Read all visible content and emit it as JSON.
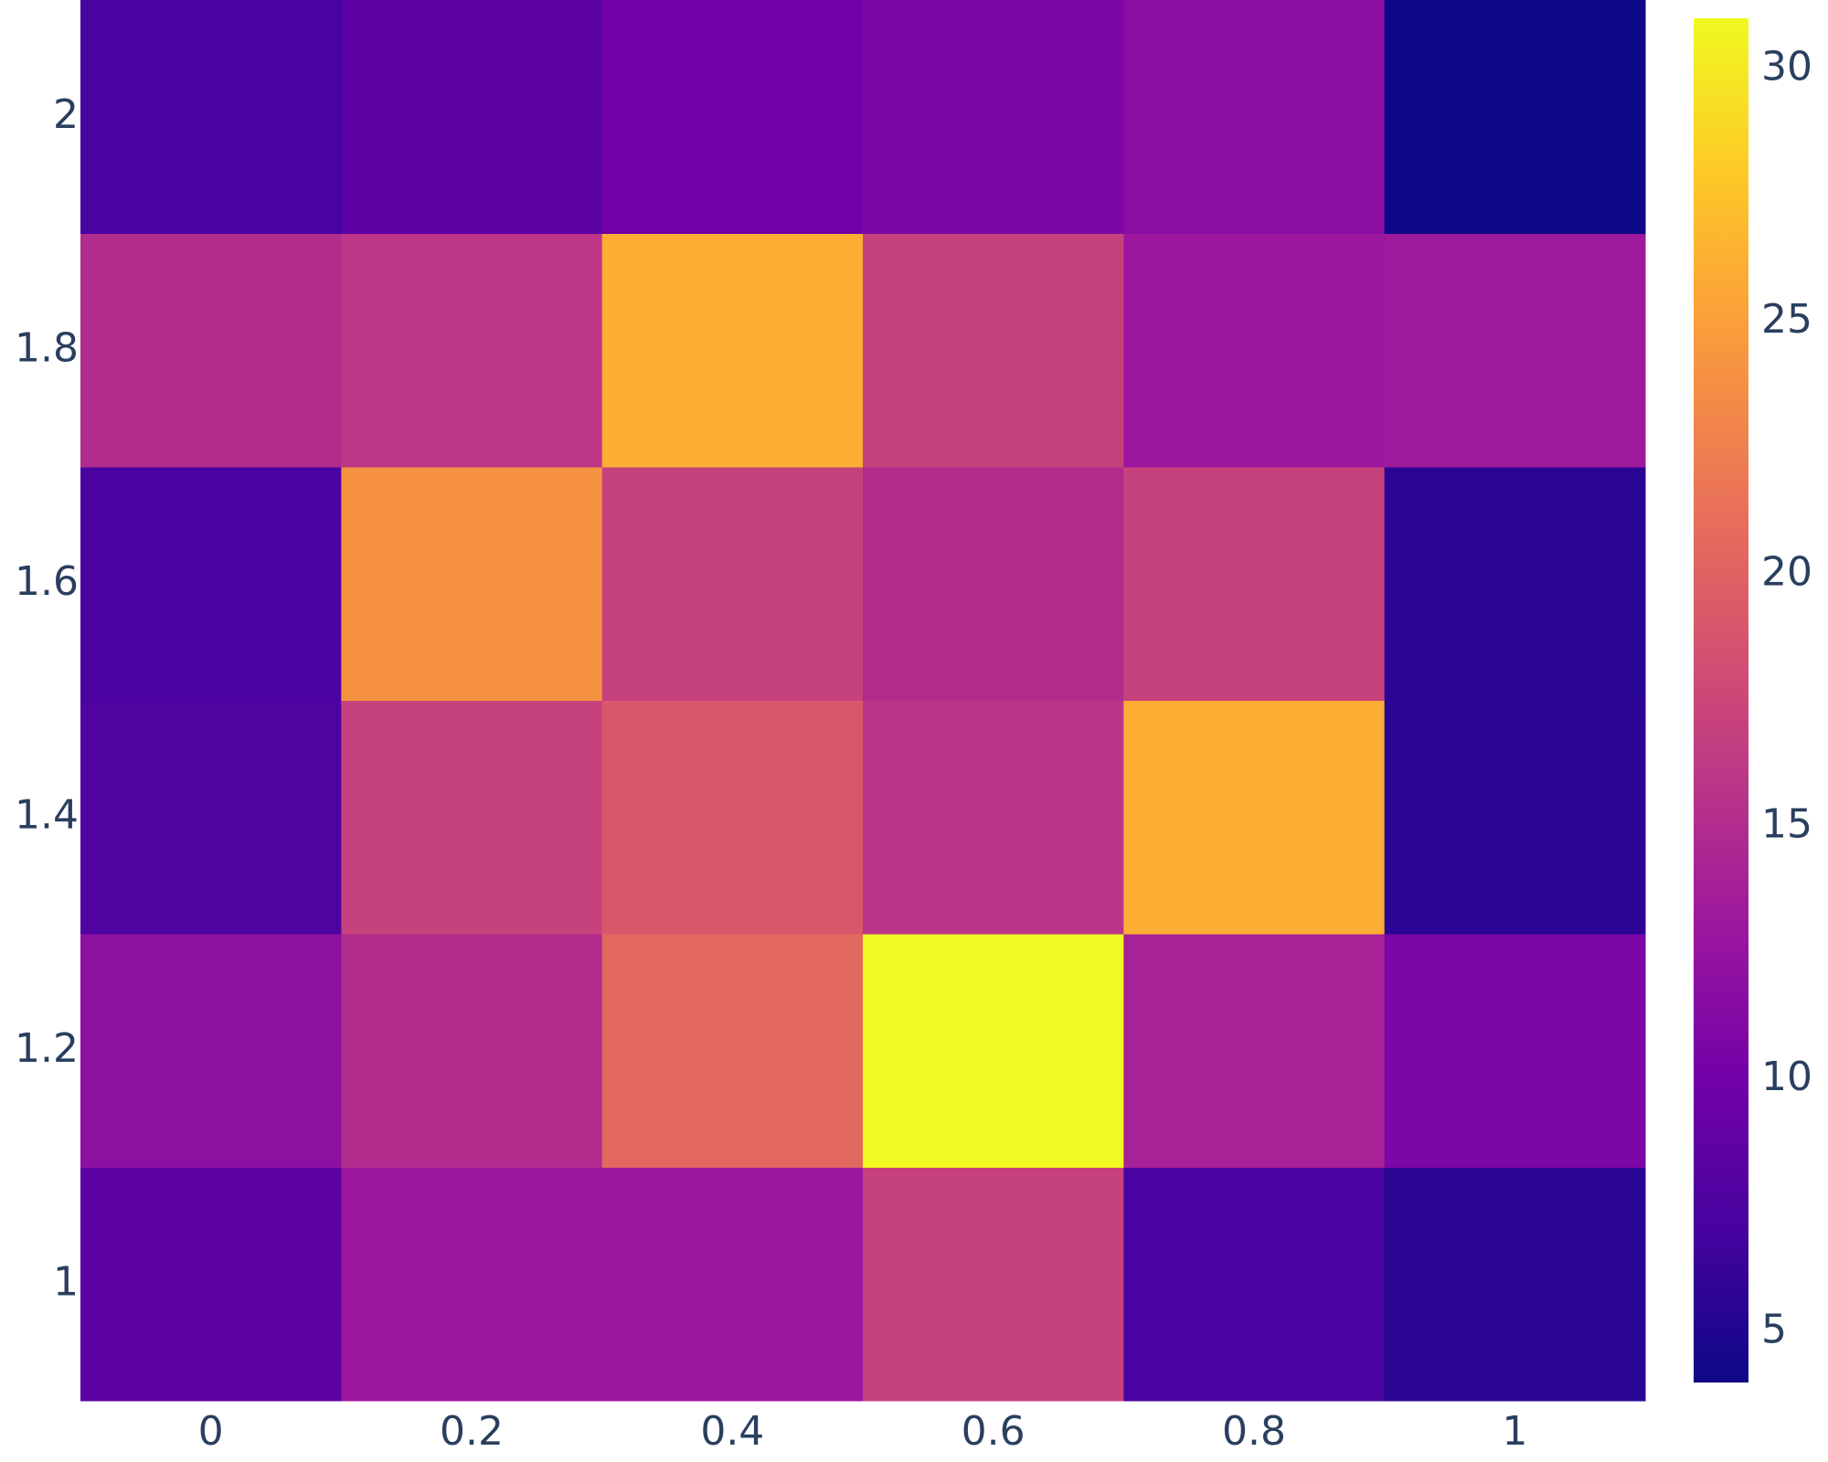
{
  "chart_data": {
    "type": "heatmap",
    "x": [
      0,
      0.2,
      0.4,
      0.6,
      0.8,
      1
    ],
    "y": [
      1,
      1.2,
      1.4,
      1.6,
      1.8,
      2
    ],
    "z": [
      [
        8.5,
        13,
        13,
        17,
        7.3,
        5.5
      ],
      [
        12,
        15,
        20.5,
        31,
        14,
        10.7
      ],
      [
        7.6,
        17,
        19,
        15.7,
        26,
        5.7
      ],
      [
        7.3,
        24,
        17,
        15,
        17,
        5.6
      ],
      [
        15,
        16,
        26,
        17,
        13,
        13.2
      ],
      [
        7.2,
        8.5,
        10,
        10.8,
        11.8,
        4
      ]
    ],
    "xlim": [
      -0.1,
      1.1
    ],
    "xticks": [
      0,
      0.2,
      0.4,
      0.6,
      0.8,
      1
    ],
    "ylim": [
      0.9,
      2.1
    ],
    "yticks": [
      1,
      1.2,
      1.4,
      1.6,
      1.8,
      2
    ],
    "zlim": [
      4,
      31
    ],
    "zticks": [
      5,
      10,
      15,
      20,
      25,
      30
    ],
    "colorscale": [
      "#0d0887",
      "#46039f",
      "#7201a8",
      "#9c179e",
      "#bd3786",
      "#d8576b",
      "#ed7953",
      "#fb9f3a",
      "#fdca26",
      "#f0f921"
    ]
  }
}
